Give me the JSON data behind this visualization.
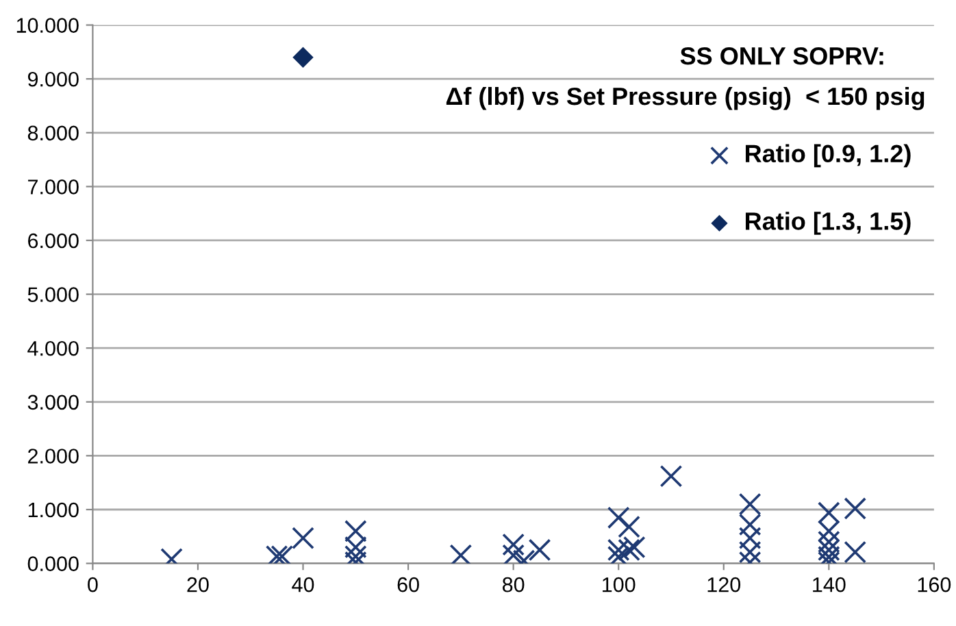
{
  "chart_data": {
    "type": "scatter",
    "title": "SS ONLY SOPRV:",
    "subtitle": "Δf (lbf) vs Set Pressure (psig)  < 150 psig",
    "series": [
      {
        "name": "Ratio [0.9, 1.2)",
        "color": "#1f3a73",
        "marker": "cross",
        "x": [
          15,
          35,
          36,
          40,
          50,
          50,
          50,
          50,
          70,
          80,
          80,
          82,
          85,
          100,
          100,
          100,
          102,
          102,
          103,
          110,
          125,
          125,
          125,
          125,
          125,
          140,
          140,
          140,
          140,
          140,
          140,
          145,
          145
        ],
        "values": [
          0.08,
          0.13,
          0.13,
          0.47,
          0.6,
          0.3,
          0.13,
          0.02,
          0.15,
          0.35,
          0.15,
          0.05,
          0.25,
          0.85,
          0.25,
          0.12,
          0.68,
          0.25,
          0.3,
          1.62,
          1.1,
          0.72,
          0.47,
          0.21,
          0.02,
          0.94,
          0.6,
          0.4,
          0.25,
          0.12,
          0.02,
          1.02,
          0.21
        ]
      },
      {
        "name": "Ratio [1.3, 1.5)",
        "color": "#0d2a5e",
        "marker": "diamond",
        "x": [
          40
        ],
        "values": [
          9.4
        ]
      }
    ],
    "xlim": [
      0,
      160
    ],
    "xticks": [
      0,
      20,
      40,
      60,
      80,
      100,
      120,
      140,
      160
    ],
    "ylim": [
      0,
      10
    ],
    "yticks": [
      {
        "value": 0,
        "label": "0.000"
      },
      {
        "value": 1,
        "label": "1.000"
      },
      {
        "value": 2,
        "label": "2.000"
      },
      {
        "value": 3,
        "label": "3.000"
      },
      {
        "value": 4,
        "label": "4.000"
      },
      {
        "value": 5,
        "label": "5.000"
      },
      {
        "value": 6,
        "label": "6.000"
      },
      {
        "value": 7,
        "label": "7.000"
      },
      {
        "value": 8,
        "label": "8.000"
      },
      {
        "value": 9,
        "label": "9.000"
      },
      {
        "value": 10,
        "label": "10.000"
      }
    ],
    "grid": "y",
    "legend": "top right"
  }
}
